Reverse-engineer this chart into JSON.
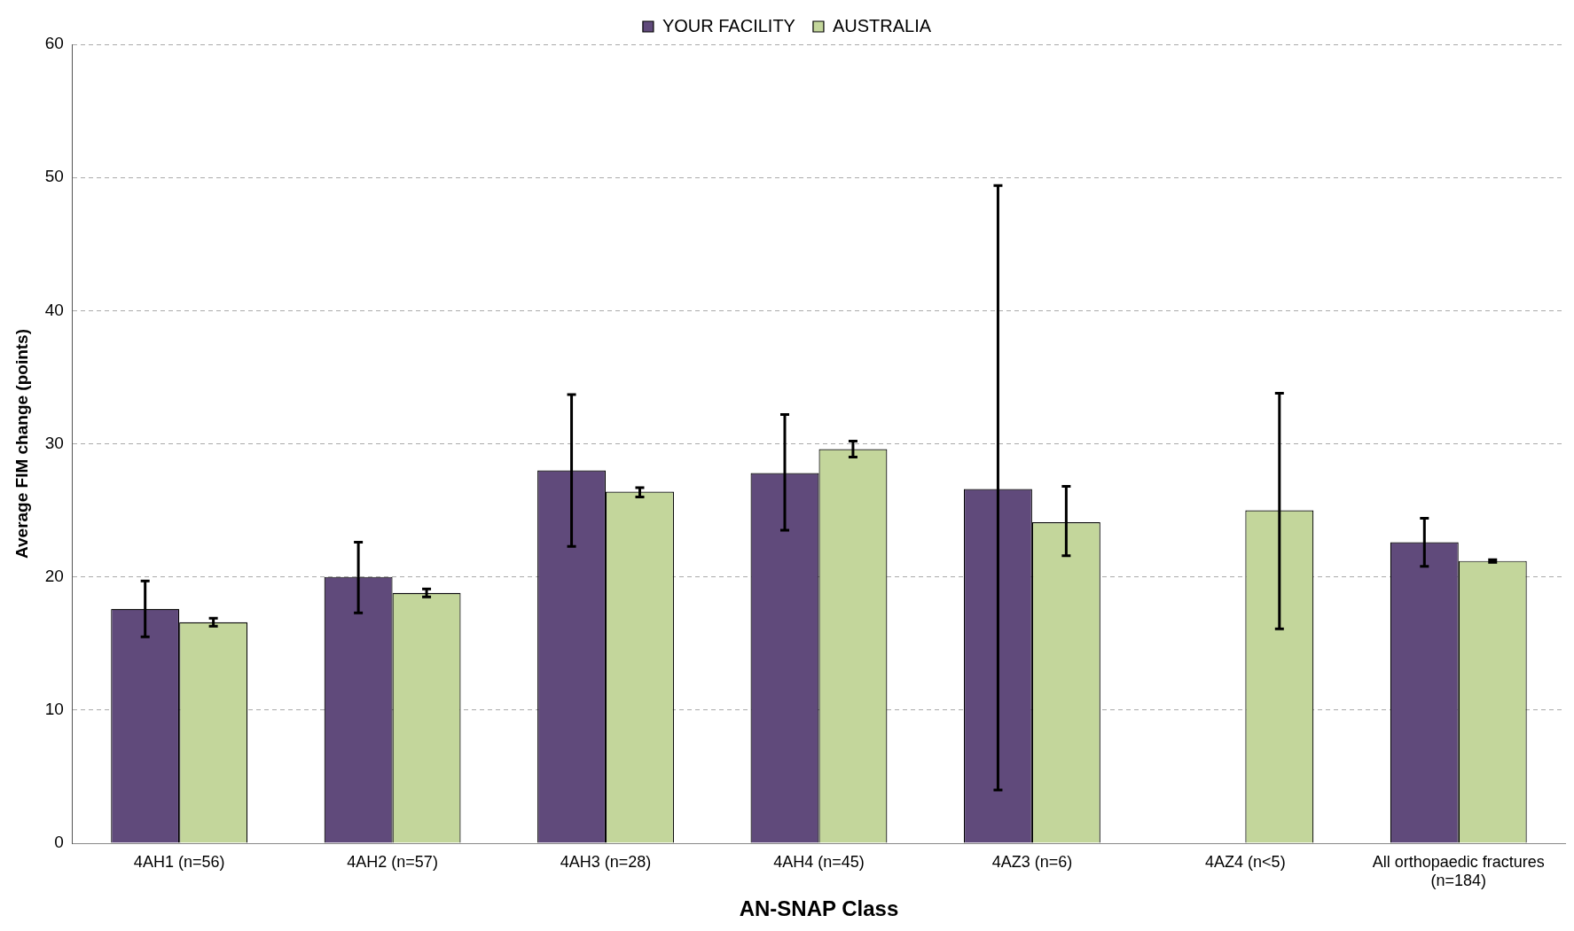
{
  "chart_data": {
    "type": "bar",
    "xlabel": "AN-SNAP Class",
    "ylabel": "Average FIM change (points)",
    "categories": [
      "4AH1 (n=56)",
      "4AH2 (n=57)",
      "4AH3 (n=28)",
      "4AH4 (n=45)",
      "4AZ3 (n=6)",
      "4AZ4 (n<5)",
      "All orthopaedic fractures (n=184)"
    ],
    "series": [
      {
        "name": "YOUR FACILITY",
        "color": "#604a7b",
        "values": [
          17.6,
          20.0,
          28.0,
          27.8,
          26.6,
          null,
          22.6
        ],
        "errors": [
          [
            15.5,
            19.7
          ],
          [
            17.3,
            22.6
          ],
          [
            22.3,
            33.7
          ],
          [
            23.5,
            32.2
          ],
          [
            4.0,
            49.4
          ],
          null,
          [
            20.8,
            24.4
          ]
        ]
      },
      {
        "name": "AUSTRALIA",
        "color": "#c3d69b",
        "values": [
          16.6,
          18.8,
          26.4,
          29.6,
          24.1,
          25.0,
          21.2
        ],
        "errors": [
          [
            16.3,
            16.9
          ],
          [
            18.5,
            19.1
          ],
          [
            26.0,
            26.7
          ],
          [
            29.0,
            30.2
          ],
          [
            21.6,
            26.8
          ],
          [
            16.1,
            33.8
          ],
          [
            21.1,
            21.3
          ]
        ]
      }
    ],
    "ylim": [
      0,
      60
    ],
    "yticks": [
      0,
      10,
      20,
      30,
      40,
      50,
      60
    ],
    "grid": "y",
    "legend": "top"
  }
}
